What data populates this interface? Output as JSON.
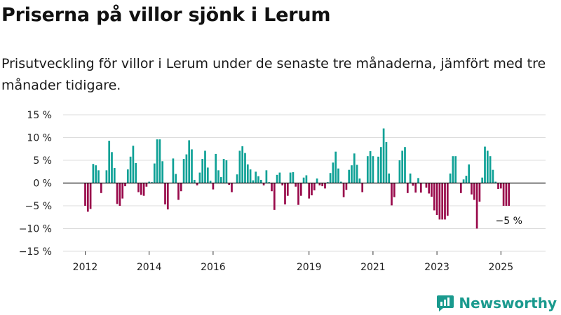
{
  "title": "Priserna på villor sjönk i Lerum",
  "subtitle": "Prisutveckling för villor i Lerum under de senaste tre månaderna, jämfört med tre månader tidigare.",
  "brand": {
    "name": "Newsworthy",
    "logo_icon": "newsworthy-logo-icon"
  },
  "colors": {
    "positive": "#0fa196",
    "negative": "#990a4b",
    "grid": "#dddddd",
    "zero": "#111111"
  },
  "chart_data": {
    "type": "bar",
    "unit": "%",
    "ylim": [
      -15,
      15
    ],
    "yticks": [
      15,
      10,
      5,
      0,
      -5,
      -10,
      -15
    ],
    "ytick_labels": [
      "15 %",
      "10 %",
      "5 %",
      "0 %",
      "−5 %",
      "−10 %",
      "−15 %"
    ],
    "x_start": "2012-01",
    "xticks": [
      {
        "label": "2012",
        "date": "2012-01"
      },
      {
        "label": "2014",
        "date": "2014-01"
      },
      {
        "label": "2016",
        "date": "2016-01"
      },
      {
        "label": "2019",
        "date": "2019-01"
      },
      {
        "label": "2021",
        "date": "2021-01"
      },
      {
        "label": "2023",
        "date": "2023-01"
      },
      {
        "label": "2025",
        "date": "2025-01"
      }
    ],
    "annotation": "−5 %",
    "grid": true,
    "values": [
      -5,
      -6.3,
      -5.7,
      4.2,
      3.9,
      2.8,
      -2.2,
      0,
      2.8,
      9.3,
      6.8,
      3.3,
      -4.6,
      -5,
      -3.4,
      -0.7,
      3,
      5.8,
      8.2,
      4.4,
      -2,
      -2.6,
      -2.8,
      -0.8,
      0.3,
      0.2,
      4.3,
      9.6,
      9.6,
      4.8,
      -4.7,
      -5.8,
      0,
      5.4,
      2,
      -3.7,
      -1.8,
      5.3,
      6.3,
      9.4,
      7.4,
      0.7,
      -0.5,
      2.3,
      5.3,
      7.1,
      3.4,
      0.5,
      -1.4,
      6.4,
      2.8,
      1.3,
      5.3,
      5,
      -0.4,
      -2,
      0,
      1.9,
      7.1,
      8.1,
      6.6,
      4.1,
      3,
      0.6,
      2.5,
      1.5,
      0.7,
      -0.5,
      2.8,
      0.2,
      -1.8,
      -5.9,
      1.8,
      2.3,
      -0.5,
      -4.7,
      -2.8,
      2.3,
      2.4,
      -0.8,
      -4.8,
      -2.8,
      1.2,
      1.7,
      -3.4,
      -2.7,
      -1.6,
      1,
      -0.5,
      -0.7,
      -1.2,
      0.2,
      2.2,
      4.5,
      6.9,
      3.2,
      0.3,
      -3.1,
      -1.5,
      2.9,
      3.9,
      6.5,
      4,
      1,
      -2,
      0,
      5.9,
      7,
      5.9,
      0,
      5.8,
      7.9,
      12,
      9,
      2.1,
      -4.9,
      -3.1,
      0,
      5,
      7.1,
      7.9,
      -2.2,
      2.1,
      -0.6,
      -2.1,
      1.1,
      -2.1,
      0,
      -1,
      -2.3,
      -3,
      -6,
      -7,
      -8,
      -8,
      -8,
      -7.2,
      2.1,
      5.9,
      5.9,
      0,
      -2.2,
      0.8,
      1.6,
      4.1,
      -2.5,
      -3.7,
      -10,
      -4.1,
      1.2,
      8,
      7.1,
      5.9,
      2.9,
      0.3,
      -1.3,
      -1.2,
      -5,
      -5,
      -5
    ]
  }
}
